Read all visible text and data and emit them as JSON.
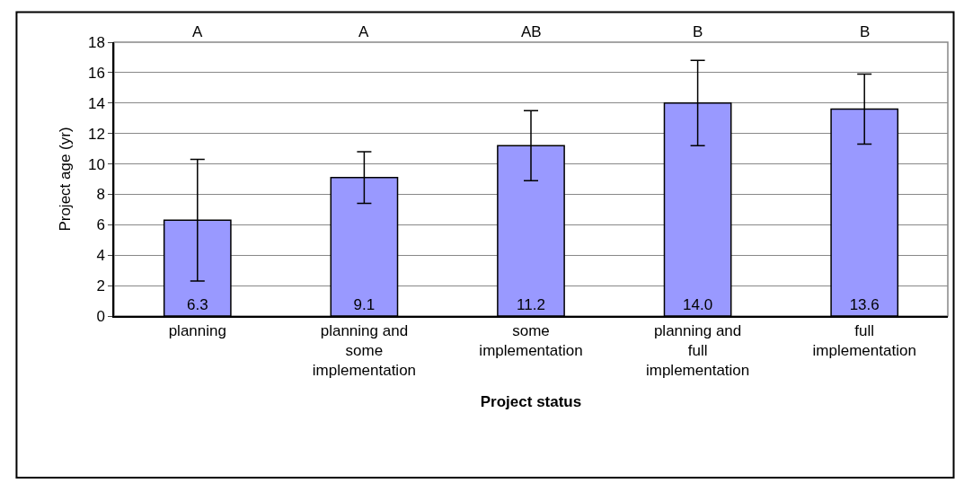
{
  "chart_data": {
    "type": "bar",
    "xlabel": "Project status",
    "ylabel": "Project age (yr)",
    "categories": [
      "planning",
      "planning and\nsome\nimplementation",
      "some\nimplementation",
      "planning and\nfull\nimplementation",
      "full\nimplementation"
    ],
    "values": [
      6.3,
      9.1,
      11.2,
      14.0,
      13.6
    ],
    "errors": [
      4.0,
      1.7,
      2.3,
      2.8,
      2.3
    ],
    "color": "#9999ff",
    "ylim": [
      0,
      18
    ],
    "yticks": [
      0,
      2,
      4,
      6,
      8,
      10,
      12,
      14,
      16,
      18
    ],
    "value_labels": [
      "6.3",
      "9.1",
      "11.2",
      "14.0",
      "13.6"
    ],
    "grid": "y",
    "annotations": [
      "A",
      "A",
      "AB",
      "B",
      "B"
    ]
  }
}
